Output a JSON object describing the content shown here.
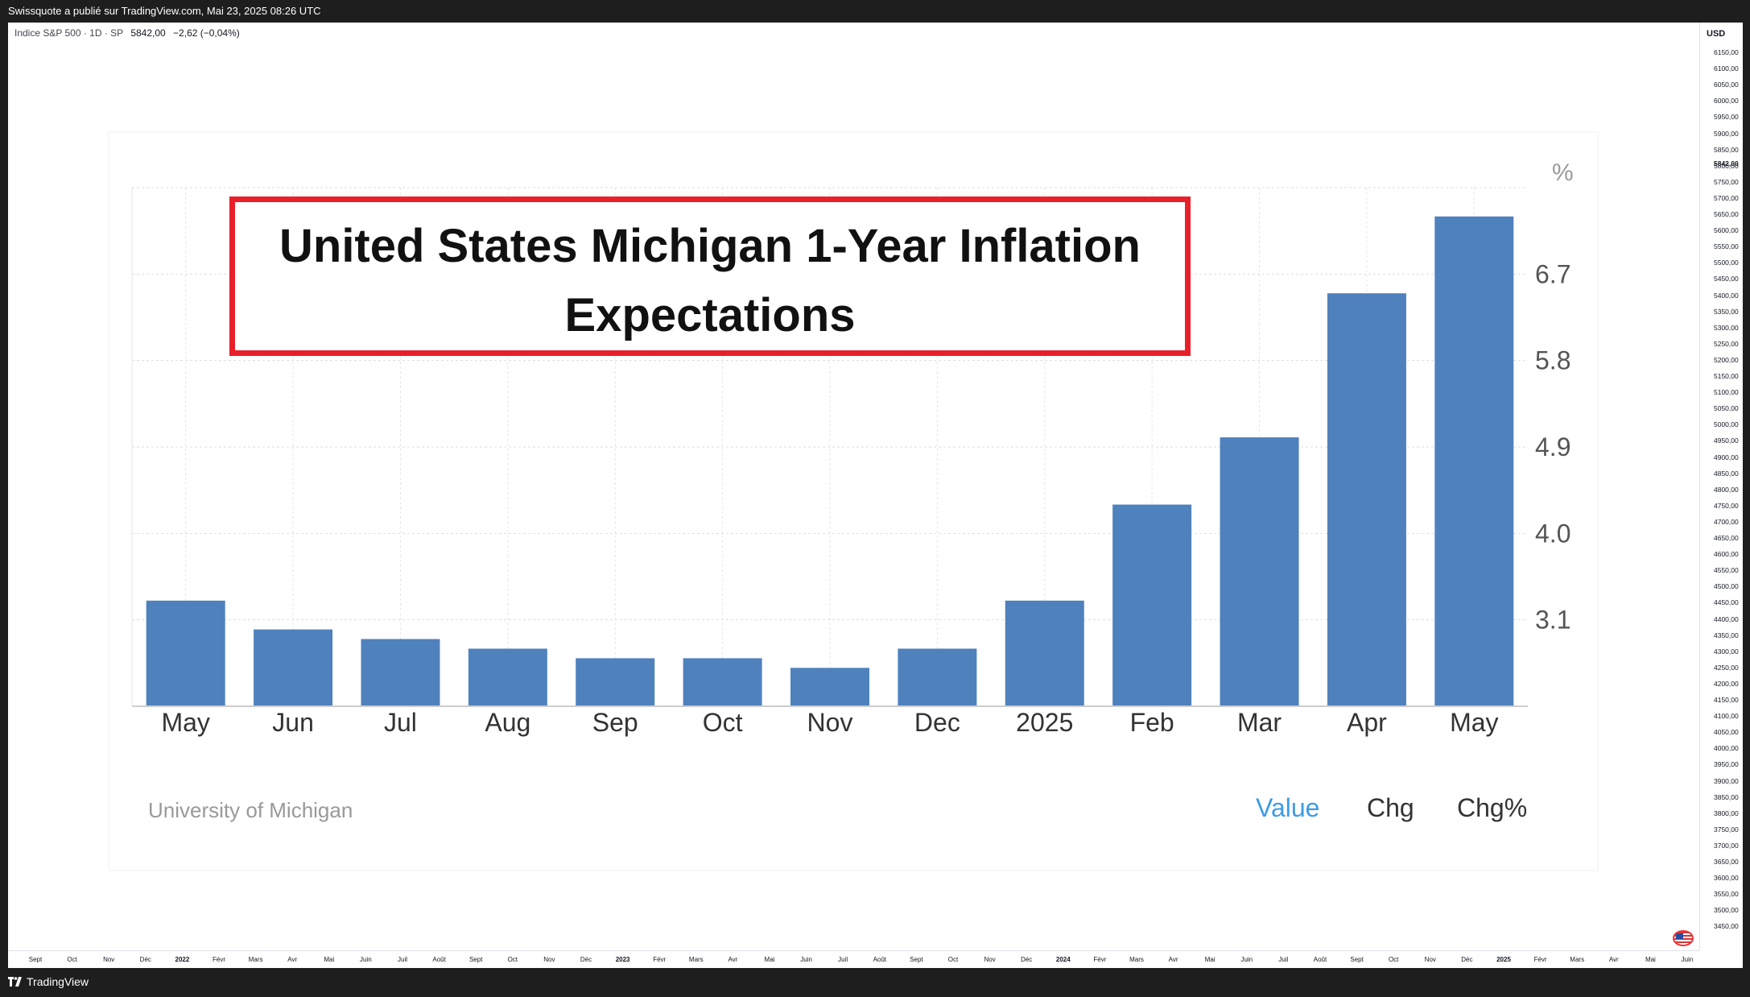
{
  "header": {
    "published": "Swissquote a publié sur TradingView.com, Mai 23, 2025 08:26 UTC"
  },
  "legend": {
    "symbol": "Indice S&P 500 · 1D · SP",
    "price": "5842,00",
    "change": "−2,62 (−0,04%)"
  },
  "price_axis": {
    "currency": "USD",
    "current_price": "5842,00",
    "ticks": [
      "6150,00",
      "6100,00",
      "6050,00",
      "6000,00",
      "5950,00",
      "5900,00",
      "5850,00",
      "5800,00",
      "5750,00",
      "5700,00",
      "5650,00",
      "5600,00",
      "5550,00",
      "5500,00",
      "5450,00",
      "5400,00",
      "5350,00",
      "5300,00",
      "5250,00",
      "5200,00",
      "5150,00",
      "5100,00",
      "5050,00",
      "5000,00",
      "4950,00",
      "4900,00",
      "4850,00",
      "4800,00",
      "4750,00",
      "4700,00",
      "4650,00",
      "4600,00",
      "4550,00",
      "4500,00",
      "4450,00",
      "4400,00",
      "4350,00",
      "4300,00",
      "4250,00",
      "4200,00",
      "4150,00",
      "4100,00",
      "4050,00",
      "4000,00",
      "3950,00",
      "3900,00",
      "3850,00",
      "3800,00",
      "3750,00",
      "3700,00",
      "3650,00",
      "3600,00",
      "3550,00",
      "3500,00",
      "3450,00"
    ]
  },
  "time_axis": {
    "labels": [
      {
        "t": "Sept",
        "year": false
      },
      {
        "t": "Oct",
        "year": false
      },
      {
        "t": "Nov",
        "year": false
      },
      {
        "t": "Déc",
        "year": false
      },
      {
        "t": "2022",
        "year": true
      },
      {
        "t": "Févr",
        "year": false
      },
      {
        "t": "Mars",
        "year": false
      },
      {
        "t": "Avr",
        "year": false
      },
      {
        "t": "Mai",
        "year": false
      },
      {
        "t": "Juin",
        "year": false
      },
      {
        "t": "Juil",
        "year": false
      },
      {
        "t": "Août",
        "year": false
      },
      {
        "t": "Sept",
        "year": false
      },
      {
        "t": "Oct",
        "year": false
      },
      {
        "t": "Nov",
        "year": false
      },
      {
        "t": "Déc",
        "year": false
      },
      {
        "t": "2023",
        "year": true
      },
      {
        "t": "Févr",
        "year": false
      },
      {
        "t": "Mars",
        "year": false
      },
      {
        "t": "Avr",
        "year": false
      },
      {
        "t": "Mai",
        "year": false
      },
      {
        "t": "Juin",
        "year": false
      },
      {
        "t": "Juil",
        "year": false
      },
      {
        "t": "Août",
        "year": false
      },
      {
        "t": "Sept",
        "year": false
      },
      {
        "t": "Oct",
        "year": false
      },
      {
        "t": "Nov",
        "year": false
      },
      {
        "t": "Déc",
        "year": false
      },
      {
        "t": "2024",
        "year": true
      },
      {
        "t": "Févr",
        "year": false
      },
      {
        "t": "Mars",
        "year": false
      },
      {
        "t": "Avr",
        "year": false
      },
      {
        "t": "Mai",
        "year": false
      },
      {
        "t": "Juin",
        "year": false
      },
      {
        "t": "Juil",
        "year": false
      },
      {
        "t": "Août",
        "year": false
      },
      {
        "t": "Sept",
        "year": false
      },
      {
        "t": "Oct",
        "year": false
      },
      {
        "t": "Nov",
        "year": false
      },
      {
        "t": "Déc",
        "year": false
      },
      {
        "t": "2025",
        "year": true
      },
      {
        "t": "Févr",
        "year": false
      },
      {
        "t": "Mars",
        "year": false
      },
      {
        "t": "Avr",
        "year": false
      },
      {
        "t": "Mai",
        "year": false
      },
      {
        "t": "Juin",
        "year": false
      }
    ]
  },
  "footer": {
    "brand": "TradingView"
  },
  "chart_data": {
    "type": "bar",
    "title": "United States Michigan 1-Year Inflation Expectations",
    "unit": "%",
    "categories": [
      "May",
      "Jun",
      "Jul",
      "Aug",
      "Sep",
      "Oct",
      "Nov",
      "Dec",
      "2025",
      "Feb",
      "Mar",
      "Apr",
      "May"
    ],
    "values": [
      3.3,
      3.0,
      2.9,
      2.8,
      2.7,
      2.7,
      2.6,
      2.8,
      3.3,
      4.3,
      5.0,
      6.5,
      7.3
    ],
    "yticks": [
      3.1,
      4.0,
      4.9,
      5.8,
      6.7
    ],
    "ylim": [
      2.2,
      7.6
    ],
    "source": "University of Michigan",
    "tabs": [
      "Value",
      "Chg",
      "Chg%"
    ],
    "bar_color": "#4f81bd"
  }
}
